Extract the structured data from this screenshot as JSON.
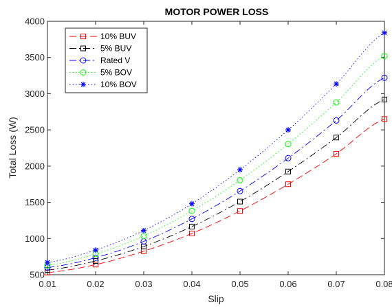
{
  "chart_data": {
    "type": "line",
    "title": "MOTOR POWER LOSS",
    "xlabel": "Slip",
    "ylabel": "Total Loss (W)",
    "xlim": [
      0.01,
      0.08
    ],
    "ylim": [
      500,
      4000
    ],
    "x_ticks": [
      "0.01",
      "0.02",
      "0.03",
      "0.04",
      "0.05",
      "0.06",
      "0.07",
      "0.08"
    ],
    "y_ticks": [
      "500",
      "1000",
      "1500",
      "2000",
      "2500",
      "3000",
      "3500",
      "4000"
    ],
    "grid": false,
    "legend_position": "top-left",
    "x": [
      0.01,
      0.02,
      0.03,
      0.04,
      0.05,
      0.06,
      0.07,
      0.08
    ],
    "series": [
      {
        "name": "10% BUV",
        "color": "#ff0000",
        "dash": "dashed",
        "marker": "square",
        "values": [
          530,
          640,
          825,
          1070,
          1380,
          1750,
          2170,
          2650
        ]
      },
      {
        "name": "5% BUV",
        "color": "#000000",
        "dash": "dashdot",
        "marker": "square",
        "values": [
          565,
          690,
          890,
          1165,
          1510,
          1925,
          2395,
          2920
        ]
      },
      {
        "name": "Rated V",
        "color": "#0000ff",
        "dash": "dashdot",
        "marker": "circle",
        "values": [
          600,
          735,
          960,
          1270,
          1655,
          2110,
          2630,
          3220
        ]
      },
      {
        "name": "5% BOV",
        "color": "#00ff00",
        "dash": "dotted",
        "marker": "circle",
        "values": [
          630,
          785,
          1035,
          1380,
          1805,
          2305,
          2880,
          3520
        ]
      },
      {
        "name": "10% BOV",
        "color": "#0000ff",
        "dash": "dotted",
        "marker": "asterisk",
        "values": [
          670,
          840,
          1110,
          1480,
          1950,
          2500,
          3135,
          3840
        ]
      }
    ]
  }
}
